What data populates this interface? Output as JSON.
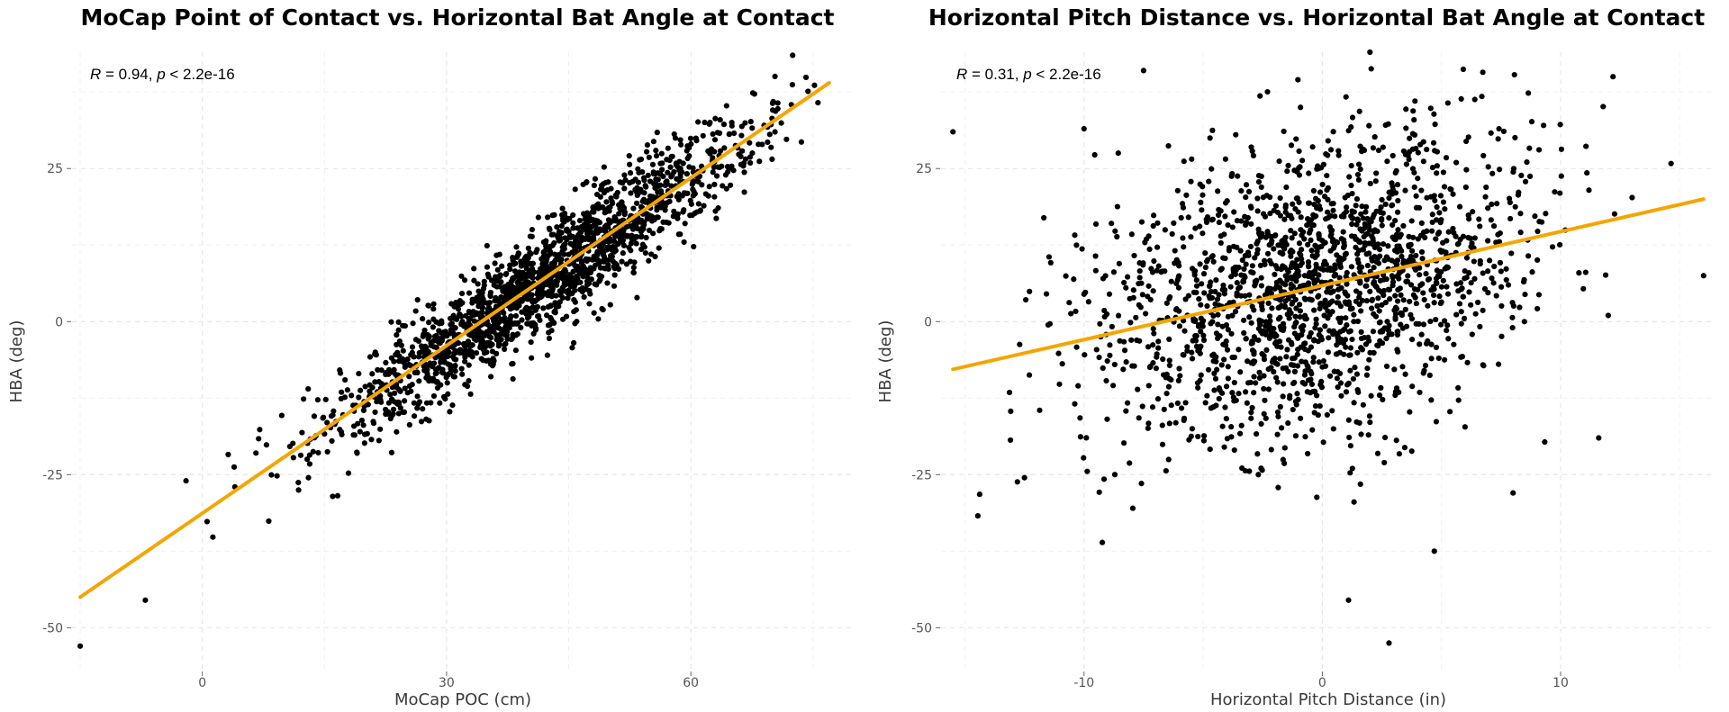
{
  "chart_data": [
    {
      "type": "scatter",
      "title": "MoCap Point of Contact vs. Horizontal Bat Angle at Contact",
      "xlabel": "MoCap POC (cm)",
      "ylabel": "HBA (deg)",
      "xlim": [
        -16,
        80
      ],
      "ylim": [
        -57,
        44
      ],
      "xticks": [
        0,
        30,
        60
      ],
      "yticks": [
        -50,
        -25,
        0,
        25
      ],
      "annotation": {
        "r_label": "R",
        "r_value": " = 0.94, ",
        "p_label": "p",
        "p_value": " < 2.2e-16"
      },
      "n_points": 1800,
      "fit": {
        "x": [
          -15,
          77
        ],
        "y": [
          -45,
          39
        ]
      },
      "point_model": {
        "slope": 0.913,
        "intercept": -31.3,
        "noise_sd": 4.3,
        "x_mean": 42,
        "x_sd": 13,
        "x_min": -14,
        "x_max": 77
      },
      "notable_points": [
        {
          "x": -15,
          "y": -53
        },
        {
          "x": -7,
          "y": -45.5
        },
        {
          "x": 72.5,
          "y": 43.5
        },
        {
          "x": -2,
          "y": -26
        },
        {
          "x": 4,
          "y": -27
        },
        {
          "x": 13,
          "y": -11
        }
      ],
      "grid": true,
      "fit_color": "#f5a500",
      "point_color": "#000000"
    },
    {
      "type": "scatter",
      "title": "Horizontal Pitch Distance vs. Horizontal Bat Angle at Contact",
      "xlabel": "Horizontal Pitch Distance (in)",
      "ylabel": "HBA (deg)",
      "xlim": [
        -16,
        16.5
      ],
      "ylim": [
        -57,
        44
      ],
      "xticks": [
        -10,
        0,
        10
      ],
      "yticks": [
        -50,
        -25,
        0,
        25
      ],
      "annotation": {
        "r_label": "R",
        "r_value": " = 0.31, ",
        "p_label": "p",
        "p_value": " < 2.2e-16"
      },
      "n_points": 1800,
      "fit": {
        "x": [
          -15.5,
          16
        ],
        "y": [
          -7.8,
          20
        ]
      },
      "point_model": {
        "slope": 0.88,
        "intercept": 6,
        "noise_sd": 12,
        "x_mean": -0.5,
        "x_sd": 4.5,
        "x_min": -15,
        "x_max": 16
      },
      "notable_points": [
        {
          "x": -15.5,
          "y": 31
        },
        {
          "x": -7.5,
          "y": 41
        },
        {
          "x": 2.8,
          "y": -52.5
        },
        {
          "x": 1.1,
          "y": -45.5
        },
        {
          "x": 12.2,
          "y": 40
        },
        {
          "x": 16,
          "y": 7.5
        },
        {
          "x": 2,
          "y": 44
        },
        {
          "x": -10,
          "y": 31.5
        },
        {
          "x": 12,
          "y": 1
        },
        {
          "x": 11.6,
          "y": -19
        },
        {
          "x": -12.5,
          "y": -25.5
        },
        {
          "x": 4.7,
          "y": -37.5
        }
      ],
      "grid": true,
      "fit_color": "#f5a500",
      "point_color": "#000000"
    }
  ]
}
